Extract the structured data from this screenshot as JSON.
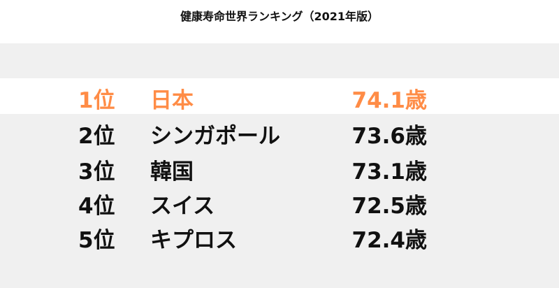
{
  "title": "健康寿命世界ランキング（2021年版）",
  "highlight_color": "#ff8c46",
  "rows": [
    {
      "rank": "1位",
      "country": "日本",
      "value": "74.1歳",
      "highlighted": true
    },
    {
      "rank": "2位",
      "country": "シンガポール",
      "value": "73.6歳"
    },
    {
      "rank": "3位",
      "country": "韓国",
      "value": "73.1歳"
    },
    {
      "rank": "4位",
      "country": "スイス",
      "value": "72.5歳"
    },
    {
      "rank": "5位",
      "country": "キプロス",
      "value": "72.4歳"
    }
  ]
}
